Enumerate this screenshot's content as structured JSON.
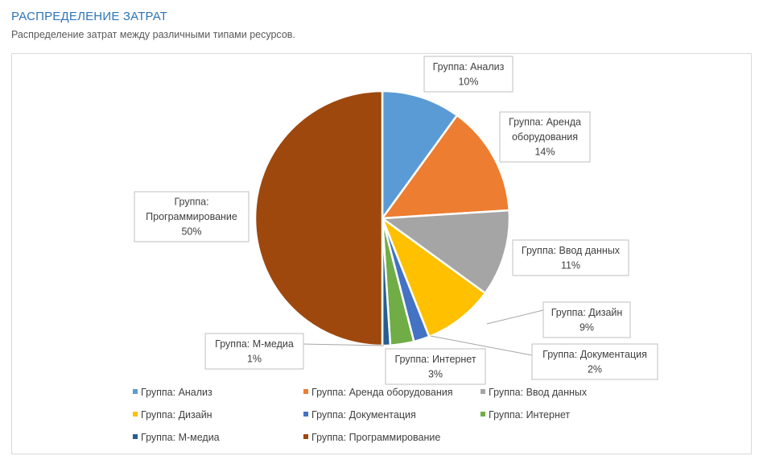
{
  "header": {
    "title": "РАСПРЕДЕЛЕНИЕ ЗАТРАТ",
    "subtitle": "Распределение затрат между различными типами ресурсов."
  },
  "chart_data": {
    "type": "pie",
    "start_angle_deg": 0,
    "direction": "clockwise",
    "slices": [
      {
        "name": "Группа: Анализ",
        "value": 10,
        "label_lines": [
          "Группа: Анализ",
          "10%"
        ],
        "color": "#5b9bd5"
      },
      {
        "name": "Группа: Аренда оборудования",
        "value": 14,
        "label_lines": [
          "Группа: Аренда",
          "оборудования",
          "14%"
        ],
        "color": "#ed7d31"
      },
      {
        "name": "Группа: Ввод данных",
        "value": 11,
        "label_lines": [
          "Группа: Ввод данных",
          "11%"
        ],
        "color": "#a5a5a5"
      },
      {
        "name": "Группа: Дизайн",
        "value": 9,
        "label_lines": [
          "Группа: Дизайн",
          "9%"
        ],
        "color": "#ffc000"
      },
      {
        "name": "Группа: Документация",
        "value": 2,
        "label_lines": [
          "Группа: Документация",
          "2%"
        ],
        "color": "#4472c4"
      },
      {
        "name": "Группа: Интернет",
        "value": 3,
        "label_lines": [
          "Группа: Интернет",
          "3%"
        ],
        "color": "#70ad47"
      },
      {
        "name": "Группа: М-медиа",
        "value": 1,
        "label_lines": [
          "Группа: М-медиа",
          "1%"
        ],
        "color": "#255e91"
      },
      {
        "name": "Группа: Программирование",
        "value": 50,
        "label_lines": [
          "Группа:",
          "Программирование",
          "50%"
        ],
        "color": "#9e480e"
      }
    ],
    "legend_position": "bottom"
  }
}
